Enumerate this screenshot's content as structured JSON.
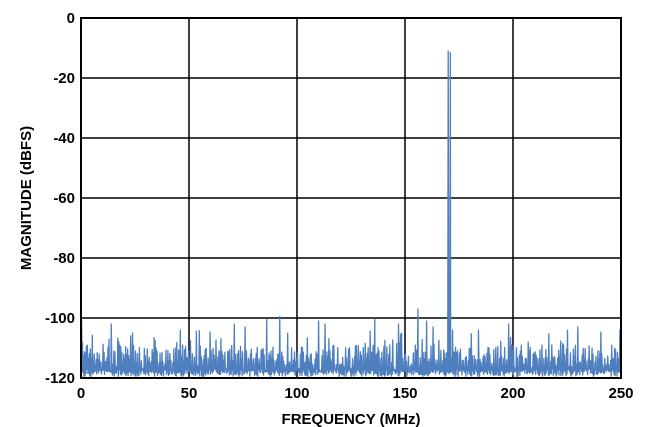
{
  "chart_data": {
    "type": "line",
    "title": "",
    "xlabel": "FREQUENCY (MHz)",
    "ylabel": "MAGNITUDE (dBFS)",
    "xlim": [
      0,
      250
    ],
    "ylim": [
      -120,
      0
    ],
    "x_ticks": [
      "0",
      "50",
      "100",
      "150",
      "200",
      "250"
    ],
    "y_ticks": [
      "0",
      "-20",
      "-40",
      "-60",
      "-80",
      "-100",
      "-120"
    ],
    "grid": true,
    "line_color": "#4f7fbf",
    "noise_floor_dbfs": -114,
    "spurs": [
      {
        "x": 0.3,
        "y": -101
      },
      {
        "x": 14,
        "y": -102
      },
      {
        "x": 23,
        "y": -106
      },
      {
        "x": 46,
        "y": -104
      },
      {
        "x": 71,
        "y": -102
      },
      {
        "x": 76,
        "y": -103
      },
      {
        "x": 86,
        "y": -100.5
      },
      {
        "x": 92,
        "y": -99.5
      },
      {
        "x": 110,
        "y": -101
      },
      {
        "x": 113,
        "y": -102
      },
      {
        "x": 136,
        "y": -100.5
      },
      {
        "x": 147,
        "y": -102
      },
      {
        "x": 156,
        "y": -97
      },
      {
        "x": 160,
        "y": -101
      },
      {
        "x": 163,
        "y": -103
      },
      {
        "x": 170,
        "y": -11
      },
      {
        "x": 171,
        "y": -11.5
      },
      {
        "x": 172,
        "y": -104
      },
      {
        "x": 184,
        "y": -104
      },
      {
        "x": 198,
        "y": -102
      },
      {
        "x": 230,
        "y": -103
      },
      {
        "x": 249.5,
        "y": -104
      }
    ]
  }
}
